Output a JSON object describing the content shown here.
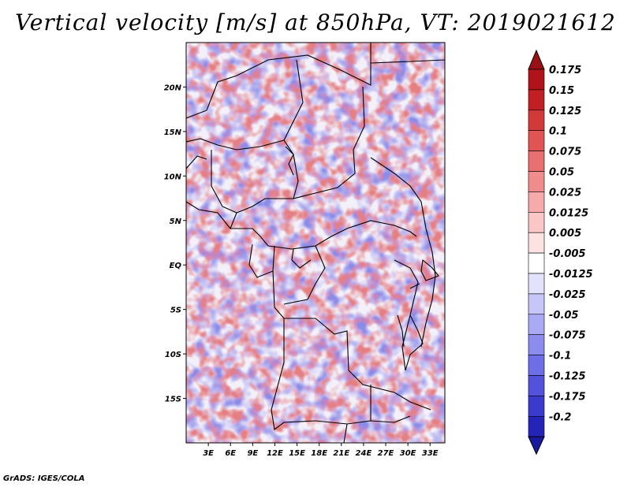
{
  "title": "Vertical velocity [m/s] at 850hPa, VT: 2019021612",
  "credit": "GrADS: IGES/COLA",
  "map": {
    "variable": "Vertical velocity",
    "units": "m/s",
    "level": "850hPa",
    "valid_time": "2019021612",
    "lon_range": [
      0,
      35
    ],
    "lat_range": [
      -20,
      25
    ],
    "lon_ticks": [
      {
        "value": 3,
        "label": "3E"
      },
      {
        "value": 6,
        "label": "6E"
      },
      {
        "value": 9,
        "label": "9E"
      },
      {
        "value": 12,
        "label": "12E"
      },
      {
        "value": 15,
        "label": "15E"
      },
      {
        "value": 18,
        "label": "18E"
      },
      {
        "value": 21,
        "label": "21E"
      },
      {
        "value": 24,
        "label": "24E"
      },
      {
        "value": 27,
        "label": "27E"
      },
      {
        "value": 30,
        "label": "30E"
      },
      {
        "value": 33,
        "label": "33E"
      }
    ],
    "lat_ticks": [
      {
        "value": 20,
        "label": "20N"
      },
      {
        "value": 15,
        "label": "15N"
      },
      {
        "value": 10,
        "label": "10N"
      },
      {
        "value": 5,
        "label": "5N"
      },
      {
        "value": 0,
        "label": "EQ"
      },
      {
        "value": -5,
        "label": "5S"
      },
      {
        "value": -10,
        "label": "10S"
      },
      {
        "value": -15,
        "label": "15S"
      }
    ]
  },
  "colorbar": {
    "levels": [
      {
        "label": "0.175",
        "color": "#b0141a"
      },
      {
        "label": "0.15",
        "color": "#c21f24"
      },
      {
        "label": "0.125",
        "color": "#d23a3a"
      },
      {
        "label": "0.1",
        "color": "#e05454"
      },
      {
        "label": "0.075",
        "color": "#e87070"
      },
      {
        "label": "0.05",
        "color": "#f08c8c"
      },
      {
        "label": "0.025",
        "color": "#f6aaaa"
      },
      {
        "label": "0.0125",
        "color": "#fac6c6"
      },
      {
        "label": "0.005",
        "color": "#fde2e2"
      },
      {
        "label": "-0.005",
        "color": "#ffffff"
      },
      {
        "label": "-0.0125",
        "color": "#e2e2fc"
      },
      {
        "label": "-0.025",
        "color": "#c6c6f8"
      },
      {
        "label": "-0.05",
        "color": "#aaaaf4"
      },
      {
        "label": "-0.075",
        "color": "#8c8cee"
      },
      {
        "label": "-0.1",
        "color": "#6e6ee6"
      },
      {
        "label": "-0.125",
        "color": "#5252dc"
      },
      {
        "label": "-0.175",
        "color": "#3a3acc"
      },
      {
        "label": "-0.2",
        "color": "#2424b8"
      }
    ],
    "top_arrow_color": "#9a1014",
    "bottom_arrow_color": "#1a1aa0"
  }
}
